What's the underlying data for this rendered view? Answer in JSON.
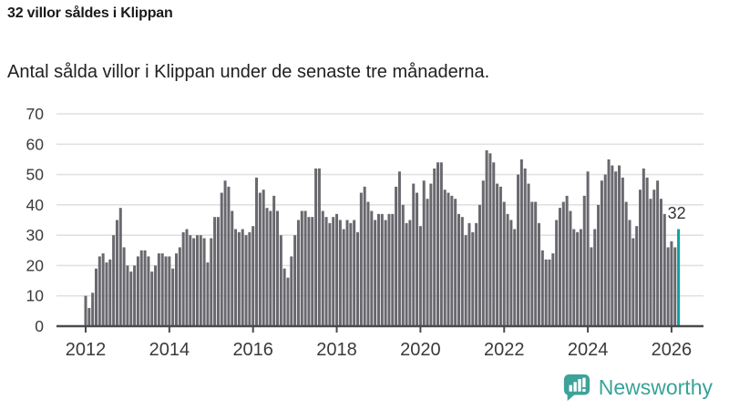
{
  "header": {
    "title": "32 villor såldes i Klippan",
    "subtitle": "Antal sålda villor i Klippan under de senaste tre månaderna."
  },
  "chart_data": {
    "type": "bar",
    "title": "32 villor såldes i Klippan",
    "subtitle": "Antal sålda villor i Klippan under de senaste tre månaderna.",
    "frequency": "monthly",
    "x_start": "2012-01",
    "x_end": "2026-03",
    "ylim": [
      0,
      70
    ],
    "yticks": [
      0,
      10,
      20,
      30,
      40,
      50,
      60,
      70
    ],
    "xtick_years": [
      2012,
      2014,
      2016,
      2018,
      2020,
      2022,
      2024,
      2026
    ],
    "grid": true,
    "values": [
      10,
      6,
      11,
      19,
      23,
      24,
      21,
      22,
      30,
      35,
      39,
      26,
      20,
      18,
      20,
      23,
      25,
      25,
      23,
      18,
      20,
      24,
      24,
      23,
      23,
      19,
      24,
      26,
      31,
      32,
      30,
      29,
      30,
      30,
      29,
      21,
      29,
      36,
      36,
      44,
      48,
      46,
      38,
      32,
      31,
      32,
      30,
      31,
      33,
      49,
      44,
      45,
      39,
      38,
      43,
      38,
      30,
      19,
      16,
      23,
      30,
      35,
      38,
      38,
      36,
      36,
      52,
      52,
      38,
      36,
      34,
      36,
      37,
      35,
      32,
      35,
      34,
      35,
      31,
      44,
      46,
      41,
      38,
      35,
      37,
      37,
      35,
      37,
      37,
      46,
      51,
      40,
      34,
      35,
      47,
      44,
      33,
      48,
      42,
      47,
      52,
      54,
      54,
      45,
      44,
      43,
      42,
      37,
      36,
      30,
      34,
      31,
      34,
      40,
      48,
      58,
      57,
      54,
      47,
      46,
      41,
      37,
      35,
      32,
      50,
      55,
      52,
      47,
      41,
      41,
      34,
      25,
      22,
      22,
      24,
      35,
      39,
      41,
      43,
      38,
      32,
      31,
      32,
      43,
      51,
      26,
      32,
      40,
      48,
      50,
      55,
      53,
      51,
      53,
      49,
      41,
      35,
      29,
      33,
      45,
      52,
      49,
      42,
      45,
      48,
      42,
      37,
      26,
      28,
      26,
      32
    ],
    "highlight": {
      "index": 170,
      "value": 32,
      "label": "32"
    },
    "colors": {
      "bar": "#68686e",
      "highlight": "#10a2a2",
      "grid": "#e1e1e1",
      "axis": "#4a4a4a",
      "tick_label": "#3a3a3a",
      "annotation": "#333333"
    }
  },
  "footer": {
    "brand": "Newsworthy",
    "logo_icon": "speech-bubble-bar-chart-icon",
    "brand_color": "#38a39a"
  }
}
